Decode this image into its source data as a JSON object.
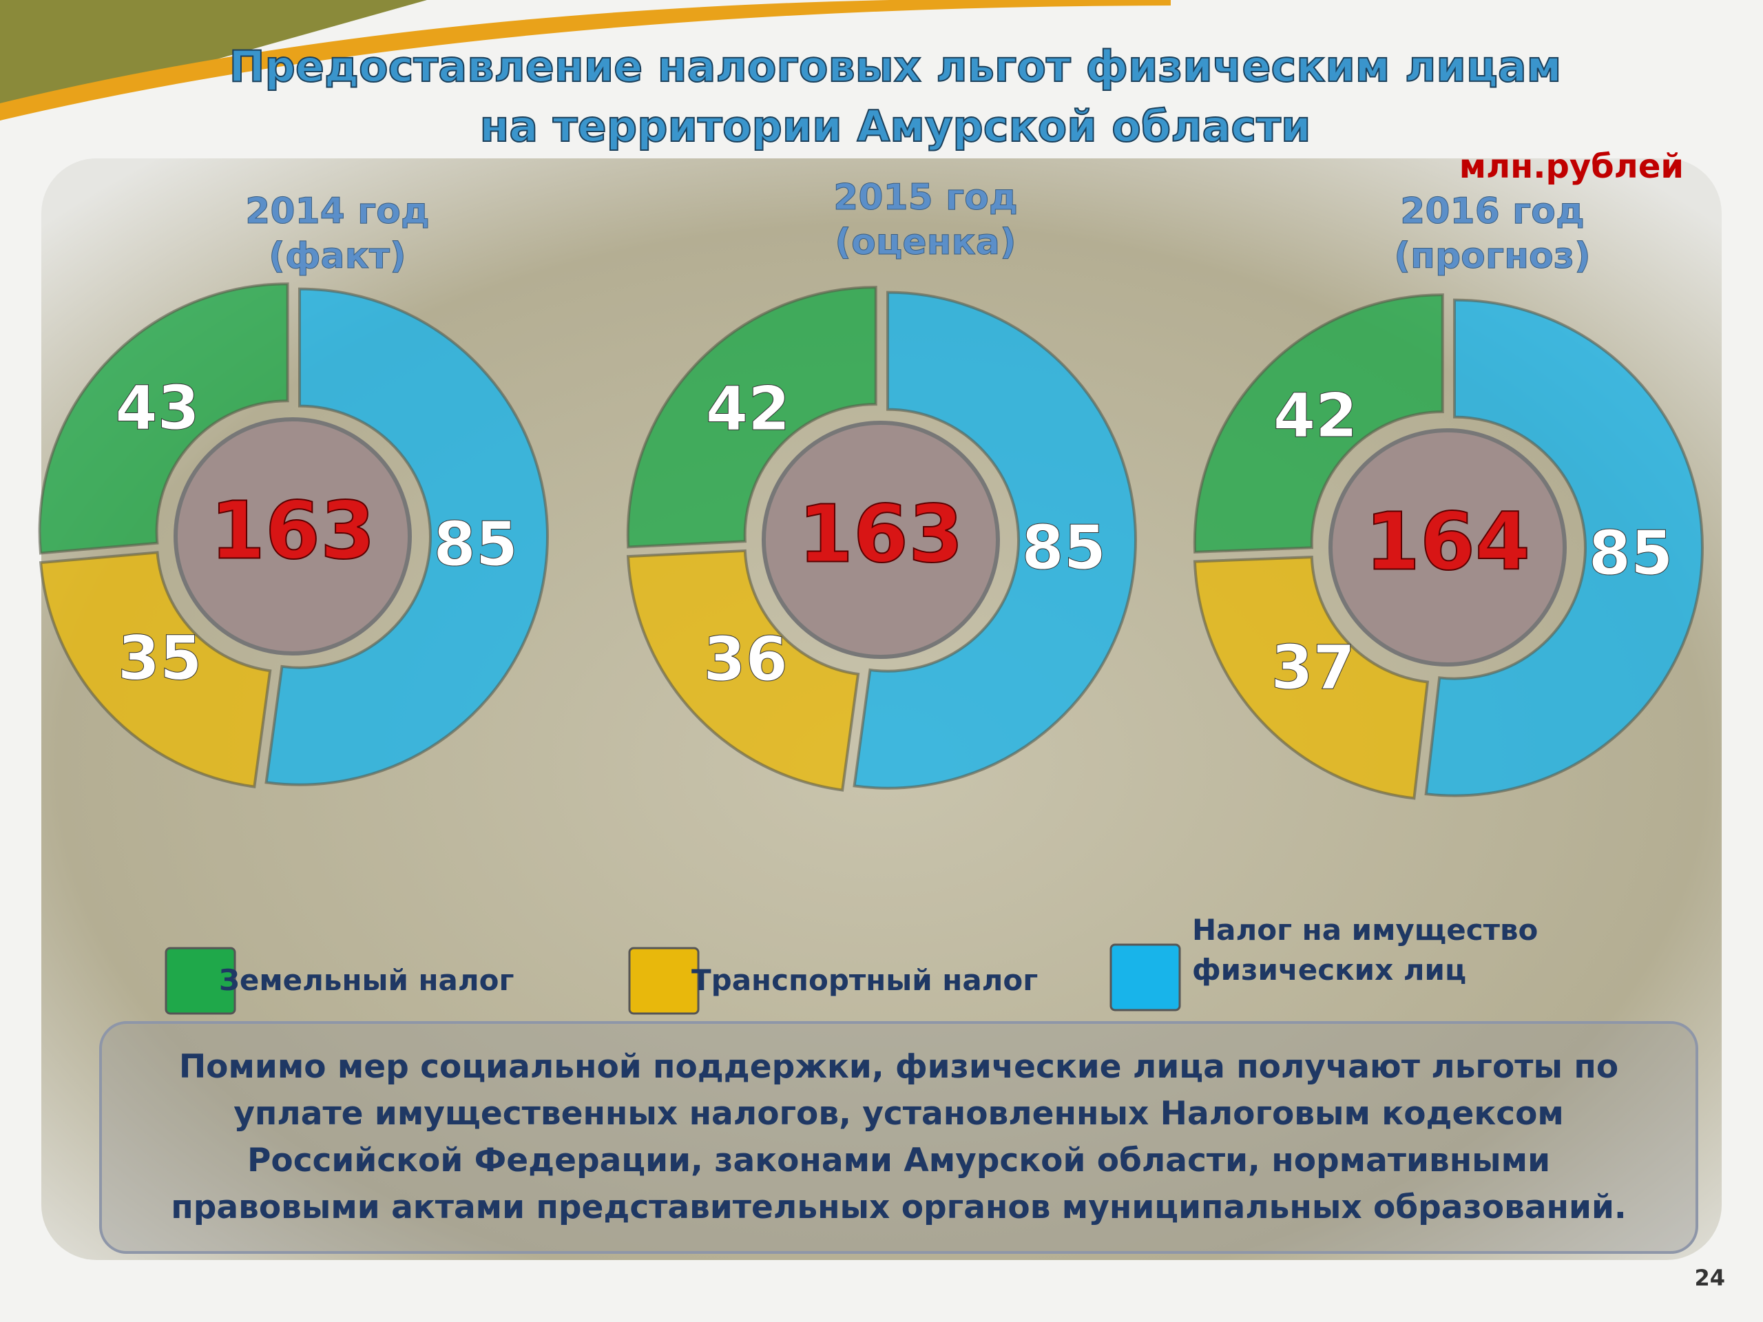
{
  "title": "Предоставление налоговых льгот физическим лицам",
  "subtitle": "на территории Амурской области",
  "unit": "млн.рублей",
  "note": [
    "Помимо мер социальной поддержки, физические лица получают льготы по",
    "уплате имущественных налогов, установленных Налоговым кодексом",
    "Российской Федерации, законами Амурской области, нормативными",
    "правовыми актами представительных органов муниципальных образований."
  ],
  "page_number": "24",
  "chart_data": [
    {
      "type": "donut",
      "title": "2014 год",
      "subtitle": "(факт)",
      "categories": [
        "Земельный налог",
        "Транспортный налог",
        "Налог на имущество физических лиц"
      ],
      "colors": [
        "#1fa84a",
        "#e8b80c",
        "#18b4ea"
      ],
      "values": [
        43,
        35,
        85
      ],
      "total": 163
    },
    {
      "type": "donut",
      "title": "2015 год",
      "subtitle": "(оценка)",
      "categories": [
        "Земельный налог",
        "Транспортный налог",
        "Налог на имущество физических лиц"
      ],
      "colors": [
        "#1fa84a",
        "#e8b80c",
        "#18b4ea"
      ],
      "values": [
        42,
        36,
        85
      ],
      "total": 163
    },
    {
      "type": "donut",
      "title": "2016 год",
      "subtitle": "(прогноз)",
      "categories": [
        "Земельный налог",
        "Транспортный налог",
        "Налог на имущество физических лиц"
      ],
      "colors": [
        "#1fa84a",
        "#e8b80c",
        "#18b4ea"
      ],
      "values": [
        42,
        37,
        85
      ],
      "total": 164
    }
  ]
}
